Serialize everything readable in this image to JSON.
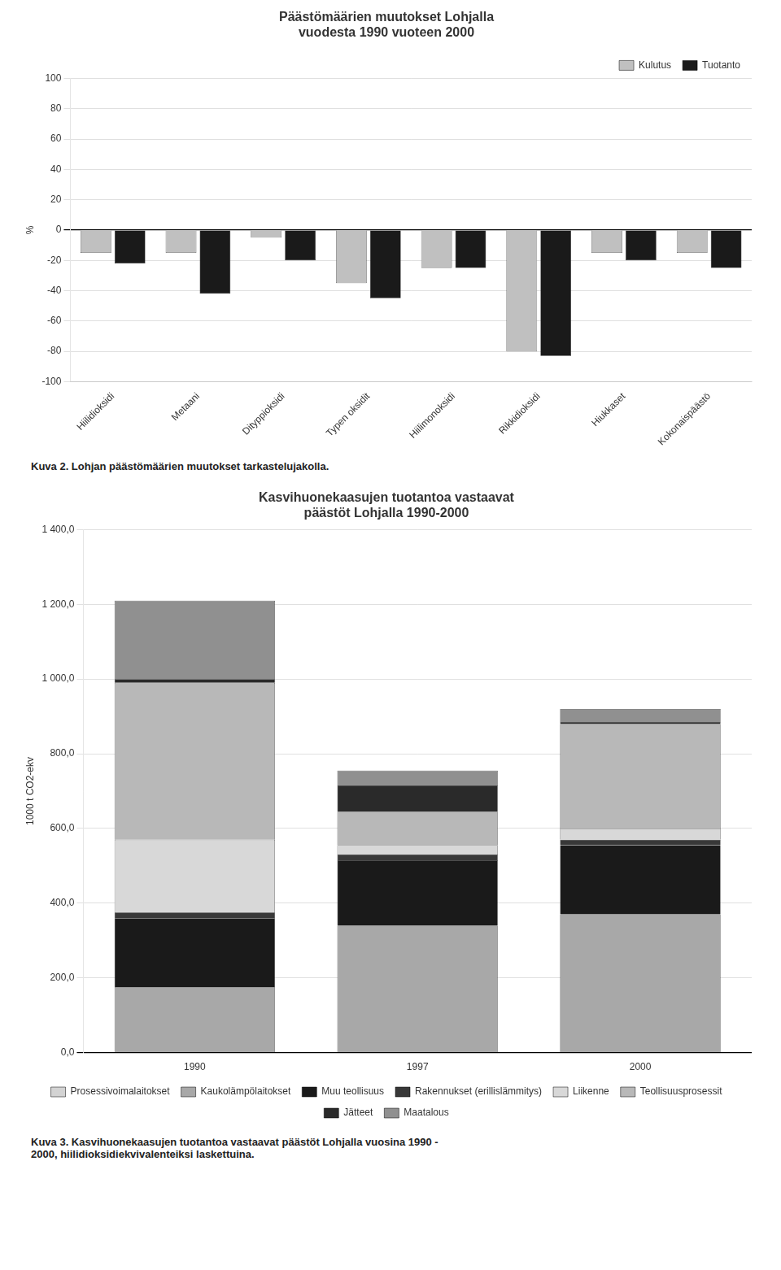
{
  "chart_data": [
    {
      "type": "bar",
      "title": "Päästömäärien muutokset Lohjalla\nvuodesta 1990 vuoteen 2000",
      "y_label": "%",
      "categories": [
        "Hiilidioksidi",
        "Metaani",
        "Dityppioksidi",
        "Typen oksidit",
        "Hiilimonoksidi",
        "Rikkidioksidi",
        "Hiukkaset",
        "Kokonaispäästö"
      ],
      "series": [
        {
          "name": "Kulutus",
          "color": "#c0c0c0",
          "values": [
            -15,
            -15,
            -5,
            -35,
            -25,
            -80,
            -15,
            -15
          ]
        },
        {
          "name": "Tuotanto",
          "color": "#1a1a1a",
          "values": [
            -22,
            -42,
            -20,
            -45,
            -25,
            -83,
            -20,
            -25
          ]
        }
      ],
      "ylim": [
        -100,
        100
      ],
      "yticks": [
        -100,
        -80,
        -60,
        -40,
        -20,
        0,
        20,
        40,
        60,
        80,
        100
      ],
      "grid": "y",
      "legend": "upper right",
      "caption": "Kuva 2. Lohjan päästömäärien muutokset tarkastelujakolla."
    },
    {
      "type": "bar",
      "title": "Kasvihuonekaasujen tuotantoa vastaavat\npäästöt Lohjalla 1990-2000",
      "y_label": "1000 t CO2-ekv",
      "categories": [
        "1990",
        "1997",
        "2000"
      ],
      "stacked": true,
      "series": [
        {
          "name": "Prosessivoimalaitokset",
          "color": "#d3d3d3",
          "values": [
            0,
            0,
            0
          ]
        },
        {
          "name": "Kaukolämpölaitokset",
          "color": "#a8a8a8",
          "values": [
            175,
            340,
            370
          ]
        },
        {
          "name": "Muu teollisuus",
          "color": "#1a1a1a",
          "values": [
            185,
            175,
            185
          ]
        },
        {
          "name": "Rakennukset (erillislämmitys)",
          "color": "#383838",
          "values": [
            15,
            15,
            15
          ]
        },
        {
          "name": "Liikenne",
          "color": "#d8d8d8",
          "values": [
            195,
            25,
            30
          ]
        },
        {
          "name": "Teollisuusprosessit",
          "color": "#b8b8b8",
          "values": [
            420,
            90,
            280
          ]
        },
        {
          "name": "Jätteet",
          "color": "#2a2a2a",
          "values": [
            10,
            70,
            5
          ]
        },
        {
          "name": "Maatalous",
          "color": "#909090",
          "values": [
            210,
            40,
            35
          ]
        }
      ],
      "ylim": [
        0,
        1400
      ],
      "yticks": [
        {
          "value": 0,
          "label": "0,0"
        },
        {
          "value": 200,
          "label": "200,0"
        },
        {
          "value": 400,
          "label": "400,0"
        },
        {
          "value": 600,
          "label": "600,0"
        },
        {
          "value": 800,
          "label": "800,0"
        },
        {
          "value": 1000,
          "label": "1 000,0"
        },
        {
          "value": 1200,
          "label": "1 200,0"
        },
        {
          "value": 1400,
          "label": "1 400,0"
        }
      ],
      "grid": "y",
      "legend": "bottom",
      "caption": "Kuva 3. Kasvihuonekaasujen tuotantoa vastaavat päästöt Lohjalla vuosina 1990 -\n2000, hiilidioksidiekvivalenteiksi laskettuina."
    }
  ]
}
